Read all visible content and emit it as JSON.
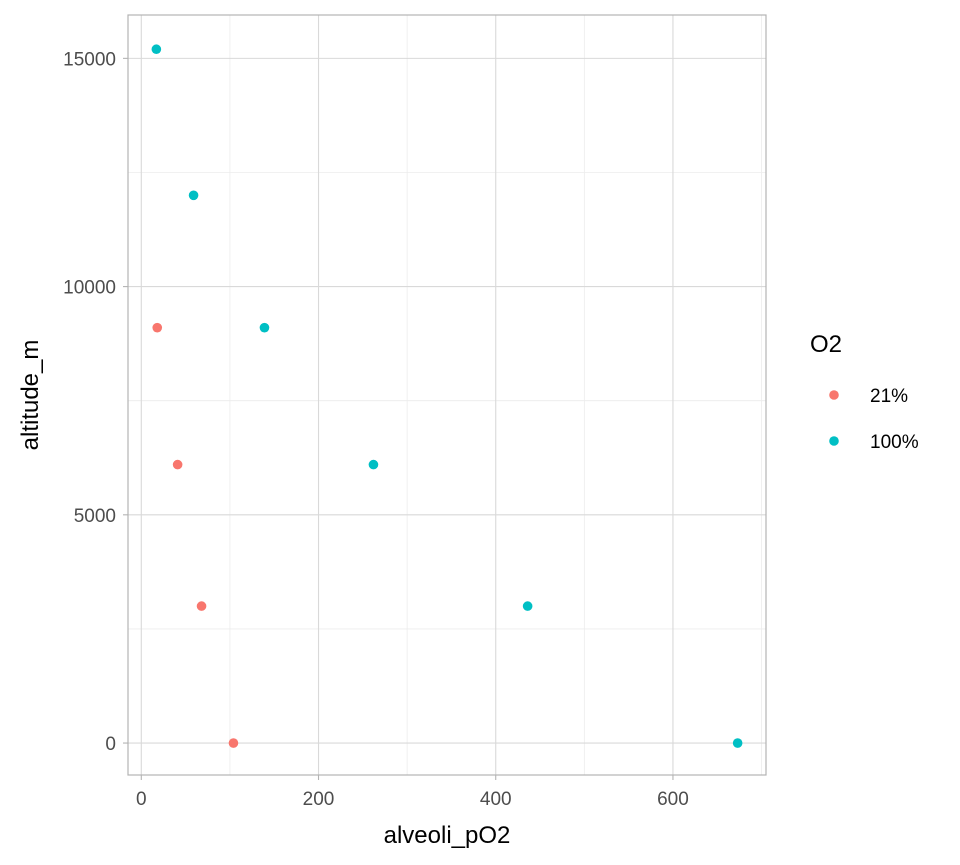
{
  "chart_data": {
    "type": "scatter",
    "title": "",
    "xlabel": "alveoli_pO2",
    "ylabel": "altitude_m",
    "xlim": [
      -15,
      705
    ],
    "ylim": [
      -700,
      15950
    ],
    "x_ticks": [
      0,
      200,
      400,
      600
    ],
    "y_ticks": [
      0,
      5000,
      10000,
      15000
    ],
    "grid": true,
    "legend": {
      "title": "O2",
      "position": "right"
    },
    "series": [
      {
        "name": "21%",
        "color": "#F8766D",
        "points": [
          {
            "x": 104,
            "y": 0
          },
          {
            "x": 68,
            "y": 3000
          },
          {
            "x": 41,
            "y": 6100
          },
          {
            "x": 18,
            "y": 9100
          }
        ]
      },
      {
        "name": "100%",
        "color": "#00BFC4",
        "points": [
          {
            "x": 673,
            "y": 0
          },
          {
            "x": 436,
            "y": 3000
          },
          {
            "x": 262,
            "y": 6100
          },
          {
            "x": 139,
            "y": 9100
          },
          {
            "x": 59,
            "y": 12000
          },
          {
            "x": 17,
            "y": 15200
          }
        ]
      }
    ]
  }
}
